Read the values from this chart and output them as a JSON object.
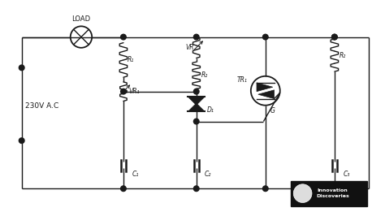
{
  "bg_color": "#ffffff",
  "line_color": "#1a1a1a",
  "text_color": "#1a1a1a",
  "label_230V": "230V A.C",
  "label_LOAD": "LOAD",
  "components": {
    "R1_label": "R₁",
    "R2_label": "R₂",
    "R3_label": "R₂",
    "VR1_label": "VR₁",
    "VR2_label": "VR",
    "C1_label": "C₁",
    "C2_label": "C₂",
    "C3_label": "C₃",
    "D1_label": "D₁",
    "TR1_label": "TR₁",
    "G_label": "G"
  },
  "logo_text": "Innovation\nDiscoveries"
}
